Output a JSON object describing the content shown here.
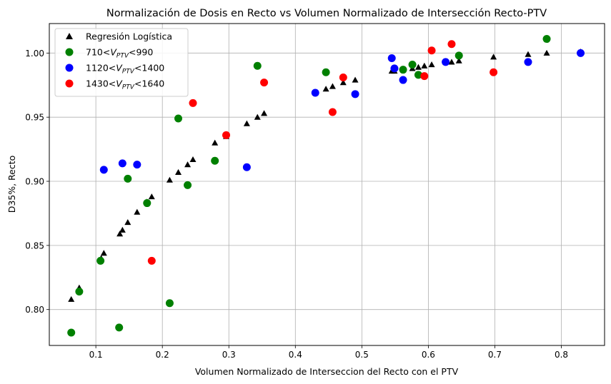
{
  "chart_data": {
    "type": "scatter",
    "title": "Normalización de Dosis en Recto vs Volumen Normalizado de Intersección Recto-PTV",
    "xlabel": "Volumen Normalizado de Interseccion del Recto con el PTV",
    "ylabel": "D35%, Recto",
    "xlim": [
      0.03,
      0.865
    ],
    "ylim": [
      0.772,
      1.023
    ],
    "xticks": [
      0.1,
      0.2,
      0.3,
      0.4,
      0.5,
      0.6,
      0.7,
      0.8
    ],
    "yticks": [
      0.8,
      0.85,
      0.9,
      0.95,
      1.0
    ],
    "xtick_labels": [
      "0.1",
      "0.2",
      "0.3",
      "0.4",
      "0.5",
      "0.6",
      "0.7",
      "0.8"
    ],
    "ytick_labels": [
      "0.80",
      "0.85",
      "0.90",
      "0.95",
      "1.00"
    ],
    "grid": true,
    "legend_position": "top-left",
    "series": [
      {
        "name": "Regresión Logística",
        "legend": {
          "pre": "Regresión Logística",
          "sub": "",
          "post": ""
        },
        "marker": "triangle",
        "color": "#000000",
        "points": [
          [
            0.063,
            0.808
          ],
          [
            0.075,
            0.817
          ],
          [
            0.108,
            0.84
          ],
          [
            0.112,
            0.844
          ],
          [
            0.136,
            0.859
          ],
          [
            0.14,
            0.862
          ],
          [
            0.148,
            0.868
          ],
          [
            0.162,
            0.876
          ],
          [
            0.177,
            0.884
          ],
          [
            0.184,
            0.888
          ],
          [
            0.211,
            0.901
          ],
          [
            0.224,
            0.907
          ],
          [
            0.238,
            0.913
          ],
          [
            0.246,
            0.917
          ],
          [
            0.279,
            0.93
          ],
          [
            0.296,
            0.935
          ],
          [
            0.327,
            0.945
          ],
          [
            0.343,
            0.95
          ],
          [
            0.353,
            0.953
          ],
          [
            0.43,
            0.969
          ],
          [
            0.446,
            0.972
          ],
          [
            0.456,
            0.974
          ],
          [
            0.472,
            0.977
          ],
          [
            0.49,
            0.979
          ],
          [
            0.545,
            0.986
          ],
          [
            0.549,
            0.986
          ],
          [
            0.562,
            0.987
          ],
          [
            0.576,
            0.988
          ],
          [
            0.585,
            0.989
          ],
          [
            0.594,
            0.99
          ],
          [
            0.605,
            0.991
          ],
          [
            0.626,
            0.993
          ],
          [
            0.635,
            0.993
          ],
          [
            0.646,
            0.994
          ],
          [
            0.698,
            0.997
          ],
          [
            0.75,
            0.999
          ],
          [
            0.778,
            1.0
          ],
          [
            0.829,
            1.001
          ]
        ]
      },
      {
        "name": "710<VPTV<990",
        "legend": {
          "pre": "710<",
          "v": "V",
          "sub": "PTV",
          "post": "<990"
        },
        "marker": "circle",
        "color": "#008000",
        "points": [
          [
            0.063,
            0.782
          ],
          [
            0.075,
            0.814
          ],
          [
            0.107,
            0.838
          ],
          [
            0.135,
            0.786
          ],
          [
            0.148,
            0.902
          ],
          [
            0.177,
            0.883
          ],
          [
            0.211,
            0.805
          ],
          [
            0.224,
            0.949
          ],
          [
            0.238,
            0.897
          ],
          [
            0.279,
            0.916
          ],
          [
            0.343,
            0.99
          ],
          [
            0.446,
            0.985
          ],
          [
            0.562,
            0.987
          ],
          [
            0.576,
            0.991
          ],
          [
            0.585,
            0.983
          ],
          [
            0.646,
            0.998
          ],
          [
            0.778,
            1.011
          ]
        ]
      },
      {
        "name": "1120<VPTV<1400",
        "legend": {
          "pre": "1120<",
          "v": "V",
          "sub": "PTV",
          "post": "<1400"
        },
        "marker": "circle",
        "color": "#0000ff",
        "points": [
          [
            0.112,
            0.909
          ],
          [
            0.14,
            0.914
          ],
          [
            0.162,
            0.913
          ],
          [
            0.327,
            0.911
          ],
          [
            0.43,
            0.969
          ],
          [
            0.49,
            0.968
          ],
          [
            0.545,
            0.996
          ],
          [
            0.549,
            0.988
          ],
          [
            0.562,
            0.979
          ],
          [
            0.626,
            0.993
          ],
          [
            0.75,
            0.993
          ],
          [
            0.829,
            1.0
          ]
        ]
      },
      {
        "name": "1430<VPTV<1640",
        "legend": {
          "pre": "1430<",
          "v": "V",
          "sub": "PTV",
          "post": "<1640"
        },
        "marker": "circle",
        "color": "#ff0000",
        "points": [
          [
            0.184,
            0.838
          ],
          [
            0.246,
            0.961
          ],
          [
            0.296,
            0.936
          ],
          [
            0.353,
            0.977
          ],
          [
            0.456,
            0.954
          ],
          [
            0.472,
            0.981
          ],
          [
            0.594,
            0.982
          ],
          [
            0.605,
            1.002
          ],
          [
            0.635,
            1.007
          ],
          [
            0.698,
            0.985
          ]
        ]
      }
    ]
  }
}
